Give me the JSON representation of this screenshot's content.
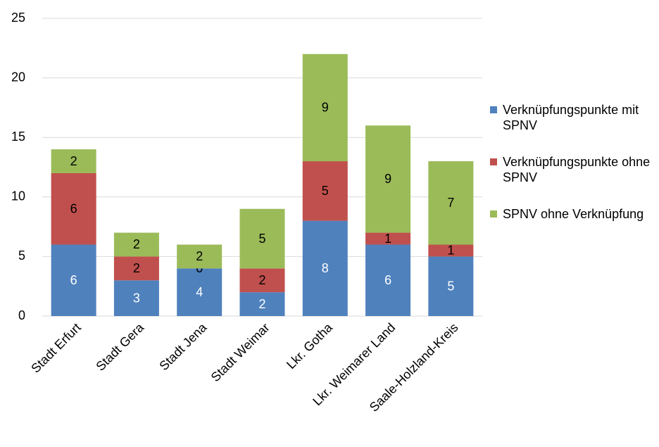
{
  "chart_data": {
    "type": "stacked-bar",
    "categories": [
      "Stadt Erfurt",
      "Stadt Gera",
      "Stadt Jena",
      "Stadt Weimar",
      "Lkr. Gotha",
      "Lkr. Weimarer Land",
      "Saale-Holzland-Kreis"
    ],
    "series": [
      {
        "name": "Verknüpfungspunkte mit SPNV",
        "color": "#4f81bd",
        "values": [
          6,
          3,
          4,
          2,
          8,
          6,
          5
        ]
      },
      {
        "name": "Verknüpfungspunkte ohne SPNV",
        "color": "#c0504d",
        "values": [
          6,
          2,
          0,
          2,
          5,
          1,
          1
        ]
      },
      {
        "name": "SPNV ohne Verknüpfung",
        "color": "#9bbb59",
        "values": [
          2,
          2,
          2,
          5,
          9,
          9,
          7
        ]
      }
    ],
    "ylim": [
      0,
      25
    ],
    "yticks": [
      0,
      5,
      10,
      15,
      20,
      25
    ],
    "grid": true,
    "legend": "right"
  }
}
